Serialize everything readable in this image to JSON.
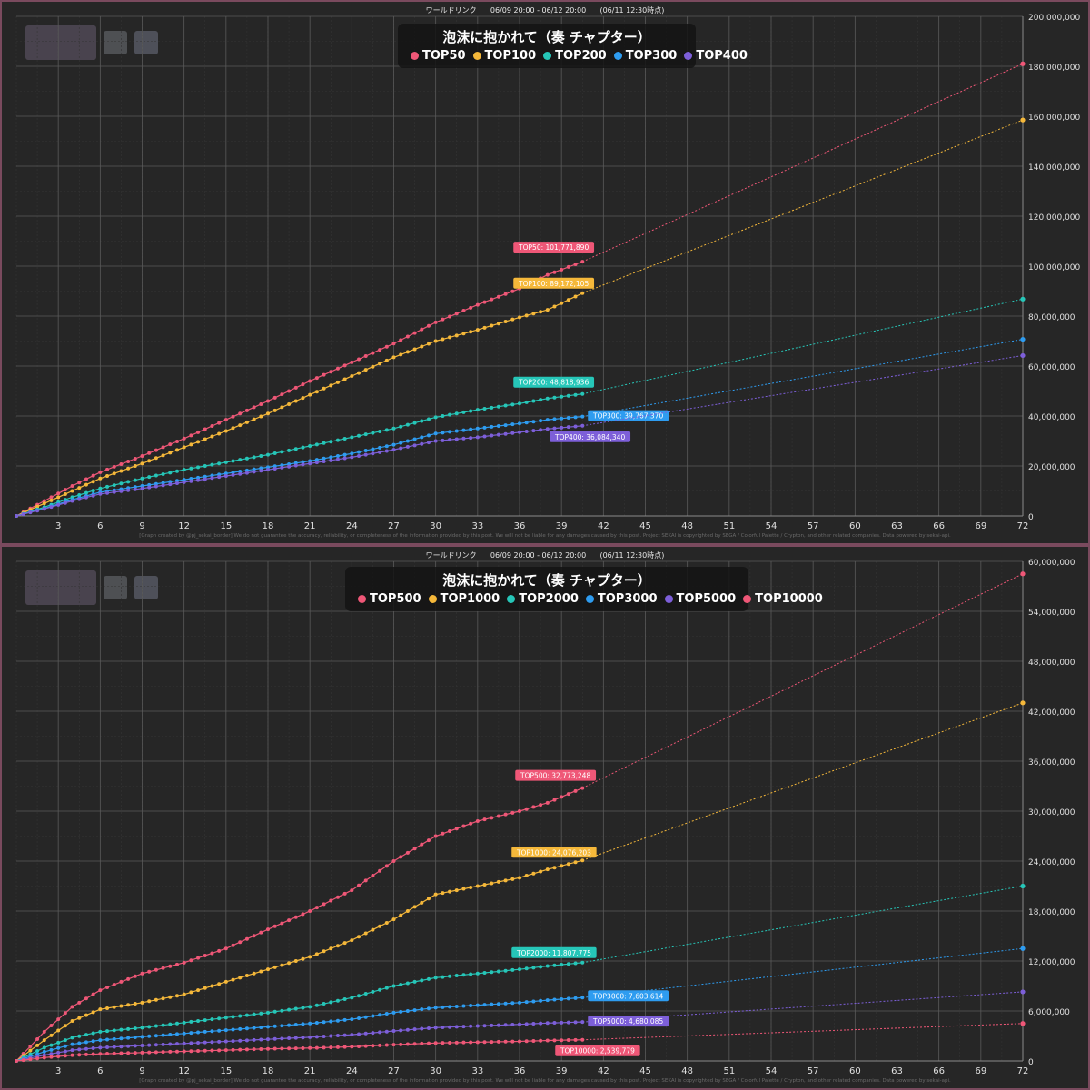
{
  "panels": [
    {
      "id": "top",
      "header": {
        "event": "ワールドリンク",
        "period": "06/09 20:00 - 06/12 20:00",
        "snapshot": "(06/11 12:30時点)"
      },
      "credit": "[Graph created by @pj_sekai_border]  We do not guarantee the accuracy, reliability, or completeness of the information provided by this post. We will not be liable for any damages caused by this post. Project SEKAI is copyrighted by SEGA / Colorful Palette / Crypton, and other related companies. Data powered by sekai-api.",
      "legend_title": "泡沫に抱かれて（奏 チャプター）",
      "chart_data": {
        "type": "line",
        "x_ticks": [
          3,
          6,
          9,
          12,
          15,
          18,
          21,
          24,
          27,
          30,
          33,
          36,
          39,
          42,
          45,
          48,
          51,
          54,
          57,
          60,
          63,
          66,
          69,
          72
        ],
        "xlim": [
          0,
          72
        ],
        "ylim": [
          0,
          200000000
        ],
        "y_ticks": [
          0,
          20000000,
          40000000,
          60000000,
          80000000,
          100000000,
          120000000,
          140000000,
          160000000,
          180000000,
          200000000
        ],
        "y_tick_labels": [
          "0",
          "20,000,000",
          "40,000,000",
          "60,000,000",
          "80,000,000",
          "100,000,000",
          "120,000,000",
          "140,000,000",
          "160,000,000",
          "180,000,000",
          "200,000,000"
        ],
        "current_x": 40.5,
        "grid": true,
        "legend_position": "top-center",
        "series": [
          {
            "name": "TOP50",
            "color": "#ef5777",
            "points": [
              [
                0,
                0
              ],
              [
                2,
                6000000
              ],
              [
                4,
                12000000
              ],
              [
                6,
                17500000
              ],
              [
                9,
                24000000
              ],
              [
                12,
                31000000
              ],
              [
                15,
                38500000
              ],
              [
                18,
                46000000
              ],
              [
                21,
                54000000
              ],
              [
                24,
                61500000
              ],
              [
                27,
                69000000
              ],
              [
                30,
                77500000
              ],
              [
                33,
                84500000
              ],
              [
                36,
                91000000
              ],
              [
                38,
                96500000
              ],
              [
                40.5,
                101771890
              ]
            ],
            "final": 101771890,
            "label": "TOP50: 101,771,890",
            "projected": 181000000
          },
          {
            "name": "TOP100",
            "color": "#f5b83a",
            "points": [
              [
                0,
                0
              ],
              [
                2,
                5000000
              ],
              [
                4,
                10000000
              ],
              [
                6,
                15000000
              ],
              [
                9,
                21000000
              ],
              [
                12,
                27500000
              ],
              [
                15,
                34000000
              ],
              [
                18,
                41000000
              ],
              [
                21,
                48500000
              ],
              [
                24,
                56000000
              ],
              [
                27,
                63500000
              ],
              [
                30,
                70000000
              ],
              [
                33,
                74500000
              ],
              [
                36,
                79500000
              ],
              [
                38,
                82500000
              ],
              [
                40.5,
                89172105
              ]
            ],
            "final": 89172105,
            "label": "TOP100: 89,172,105",
            "projected": 158500000
          },
          {
            "name": "TOP200",
            "color": "#26c6b8",
            "points": [
              [
                0,
                0
              ],
              [
                2,
                3500000
              ],
              [
                4,
                7500000
              ],
              [
                6,
                11000000
              ],
              [
                9,
                15000000
              ],
              [
                12,
                18500000
              ],
              [
                15,
                21500000
              ],
              [
                18,
                24500000
              ],
              [
                21,
                28000000
              ],
              [
                24,
                31500000
              ],
              [
                27,
                35000000
              ],
              [
                30,
                39500000
              ],
              [
                33,
                42500000
              ],
              [
                36,
                45000000
              ],
              [
                38,
                47000000
              ],
              [
                40.5,
                48818936
              ]
            ],
            "final": 48818936,
            "label": "TOP200: 48,818,936",
            "projected": 86800000
          },
          {
            "name": "TOP300",
            "color": "#2e9cf0",
            "points": [
              [
                0,
                0
              ],
              [
                2,
                3000000
              ],
              [
                4,
                6500000
              ],
              [
                6,
                9500000
              ],
              [
                9,
                12000000
              ],
              [
                12,
                14500000
              ],
              [
                15,
                17000000
              ],
              [
                18,
                19500000
              ],
              [
                21,
                22000000
              ],
              [
                24,
                25000000
              ],
              [
                27,
                28500000
              ],
              [
                30,
                33000000
              ],
              [
                33,
                35000000
              ],
              [
                36,
                37000000
              ],
              [
                38,
                38500000
              ],
              [
                40.5,
                39767370
              ]
            ],
            "final": 39767370,
            "label": "TOP300: 39,767,370",
            "projected": 70700000
          },
          {
            "name": "TOP400",
            "color": "#7d5fd9",
            "points": [
              [
                0,
                0
              ],
              [
                2,
                2800000
              ],
              [
                4,
                6000000
              ],
              [
                6,
                8800000
              ],
              [
                9,
                11000000
              ],
              [
                12,
                13500000
              ],
              [
                15,
                16000000
              ],
              [
                18,
                18500000
              ],
              [
                21,
                21000000
              ],
              [
                24,
                23500000
              ],
              [
                27,
                26500000
              ],
              [
                30,
                30000000
              ],
              [
                33,
                31500000
              ],
              [
                36,
                33500000
              ],
              [
                38,
                34800000
              ],
              [
                40.5,
                36084340
              ]
            ],
            "final": 36084340,
            "label": "TOP400: 36,084,340",
            "projected": 64200000
          }
        ]
      }
    },
    {
      "id": "bottom",
      "header": {
        "event": "ワールドリンク",
        "period": "06/09 20:00 - 06/12 20:00",
        "snapshot": "(06/11 12:30時点)"
      },
      "credit": "[Graph created by @pj_sekai_border]  We do not guarantee the accuracy, reliability, or completeness of the information provided by this post. We will not be liable for any damages caused by this post. Project SEKAI is copyrighted by SEGA / Colorful Palette / Crypton, and other related companies. Data powered by sekai-api.",
      "legend_title": "泡沫に抱かれて（奏 チャプター）",
      "chart_data": {
        "type": "line",
        "x_ticks": [
          3,
          6,
          9,
          12,
          15,
          18,
          21,
          24,
          27,
          30,
          33,
          36,
          39,
          42,
          45,
          48,
          51,
          54,
          57,
          60,
          63,
          66,
          69,
          72
        ],
        "xlim": [
          0,
          72
        ],
        "ylim": [
          0,
          60000000
        ],
        "y_ticks": [
          0,
          6000000,
          12000000,
          18000000,
          24000000,
          30000000,
          36000000,
          42000000,
          48000000,
          54000000,
          60000000
        ],
        "y_tick_labels": [
          "0",
          "6,000,000",
          "12,000,000",
          "18,000,000",
          "24,000,000",
          "30,000,000",
          "36,000,000",
          "42,000,000",
          "48,000,000",
          "54,000,000",
          "60,000,000"
        ],
        "current_x": 40.5,
        "grid": true,
        "legend_position": "top-center",
        "series": [
          {
            "name": "TOP500",
            "color": "#ef5777",
            "points": [
              [
                0,
                0
              ],
              [
                2,
                3500000
              ],
              [
                4,
                6500000
              ],
              [
                6,
                8500000
              ],
              [
                9,
                10500000
              ],
              [
                12,
                11800000
              ],
              [
                15,
                13500000
              ],
              [
                18,
                15800000
              ],
              [
                21,
                18000000
              ],
              [
                24,
                20500000
              ],
              [
                27,
                24000000
              ],
              [
                30,
                27000000
              ],
              [
                33,
                28800000
              ],
              [
                36,
                30000000
              ],
              [
                38,
                31000000
              ],
              [
                40.5,
                32773248
              ]
            ],
            "final": 32773248,
            "label": "TOP500: 32,773,248",
            "projected": 58500000
          },
          {
            "name": "TOP1000",
            "color": "#f5b83a",
            "points": [
              [
                0,
                0
              ],
              [
                2,
                2500000
              ],
              [
                4,
                4800000
              ],
              [
                6,
                6200000
              ],
              [
                9,
                7000000
              ],
              [
                12,
                8000000
              ],
              [
                15,
                9500000
              ],
              [
                18,
                11000000
              ],
              [
                21,
                12500000
              ],
              [
                24,
                14500000
              ],
              [
                27,
                17000000
              ],
              [
                30,
                20000000
              ],
              [
                33,
                21000000
              ],
              [
                36,
                22000000
              ],
              [
                38,
                23000000
              ],
              [
                40.5,
                24076203
              ]
            ],
            "final": 24076203,
            "label": "TOP1000: 24,076,203",
            "projected": 43000000
          },
          {
            "name": "TOP2000",
            "color": "#26c6b8",
            "points": [
              [
                0,
                0
              ],
              [
                2,
                1600000
              ],
              [
                4,
                2800000
              ],
              [
                6,
                3500000
              ],
              [
                9,
                4000000
              ],
              [
                12,
                4600000
              ],
              [
                15,
                5200000
              ],
              [
                18,
                5800000
              ],
              [
                21,
                6500000
              ],
              [
                24,
                7600000
              ],
              [
                27,
                9000000
              ],
              [
                30,
                10000000
              ],
              [
                33,
                10500000
              ],
              [
                36,
                11000000
              ],
              [
                38,
                11400000
              ],
              [
                40.5,
                11807775
              ]
            ],
            "final": 11807775,
            "label": "TOP2000: 11,807,775",
            "projected": 21000000
          },
          {
            "name": "TOP3000",
            "color": "#2e9cf0",
            "points": [
              [
                0,
                0
              ],
              [
                2,
                1100000
              ],
              [
                4,
                2000000
              ],
              [
                6,
                2500000
              ],
              [
                9,
                2900000
              ],
              [
                12,
                3300000
              ],
              [
                15,
                3700000
              ],
              [
                18,
                4100000
              ],
              [
                21,
                4500000
              ],
              [
                24,
                5000000
              ],
              [
                27,
                5800000
              ],
              [
                30,
                6400000
              ],
              [
                33,
                6700000
              ],
              [
                36,
                7000000
              ],
              [
                38,
                7300000
              ],
              [
                40.5,
                7603614
              ]
            ],
            "final": 7603614,
            "label": "TOP3000: 7,603,614",
            "projected": 13500000
          },
          {
            "name": "TOP5000",
            "color": "#7d5fd9",
            "points": [
              [
                0,
                0
              ],
              [
                2,
                700000
              ],
              [
                4,
                1300000
              ],
              [
                6,
                1600000
              ],
              [
                9,
                1850000
              ],
              [
                12,
                2100000
              ],
              [
                15,
                2350000
              ],
              [
                18,
                2600000
              ],
              [
                21,
                2850000
              ],
              [
                24,
                3150000
              ],
              [
                27,
                3600000
              ],
              [
                30,
                4000000
              ],
              [
                33,
                4200000
              ],
              [
                36,
                4400000
              ],
              [
                38,
                4550000
              ],
              [
                40.5,
                4680085
              ]
            ],
            "final": 4680085,
            "label": "TOP5000: 4,680,085",
            "projected": 8300000
          },
          {
            "name": "TOP10000",
            "color": "#ef5777",
            "points": [
              [
                0,
                0
              ],
              [
                2,
                400000
              ],
              [
                4,
                700000
              ],
              [
                6,
                850000
              ],
              [
                9,
                1000000
              ],
              [
                12,
                1150000
              ],
              [
                15,
                1300000
              ],
              [
                18,
                1450000
              ],
              [
                21,
                1550000
              ],
              [
                24,
                1700000
              ],
              [
                27,
                1950000
              ],
              [
                30,
                2150000
              ],
              [
                33,
                2250000
              ],
              [
                36,
                2350000
              ],
              [
                38,
                2450000
              ],
              [
                40.5,
                2539779
              ]
            ],
            "final": 2539779,
            "label": "TOP10000: 2,539,779",
            "projected": 4500000
          }
        ]
      }
    }
  ]
}
